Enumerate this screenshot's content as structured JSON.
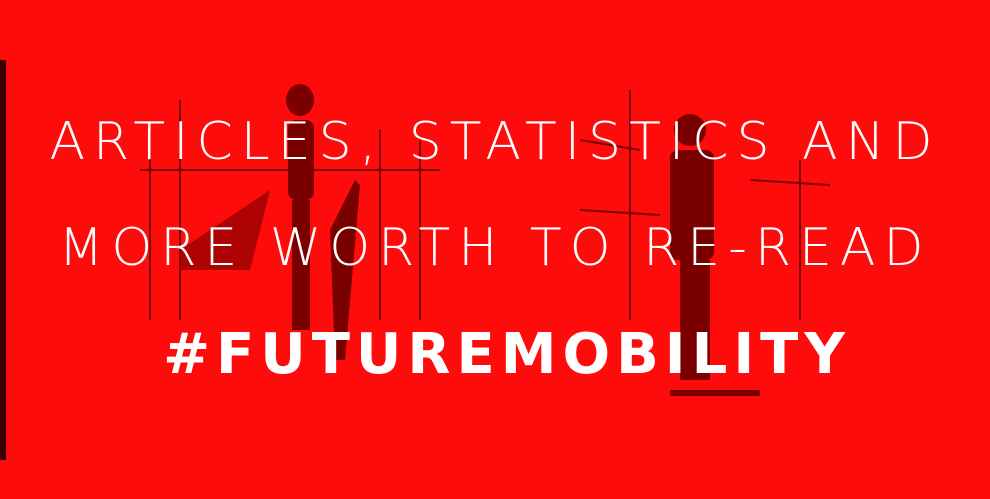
{
  "banner": {
    "lines": [
      "ARTICLES, STATISTICS AND",
      "MORE WORTH TO RE-READ"
    ],
    "hashtag": "#FUTUREMOBILITY"
  }
}
